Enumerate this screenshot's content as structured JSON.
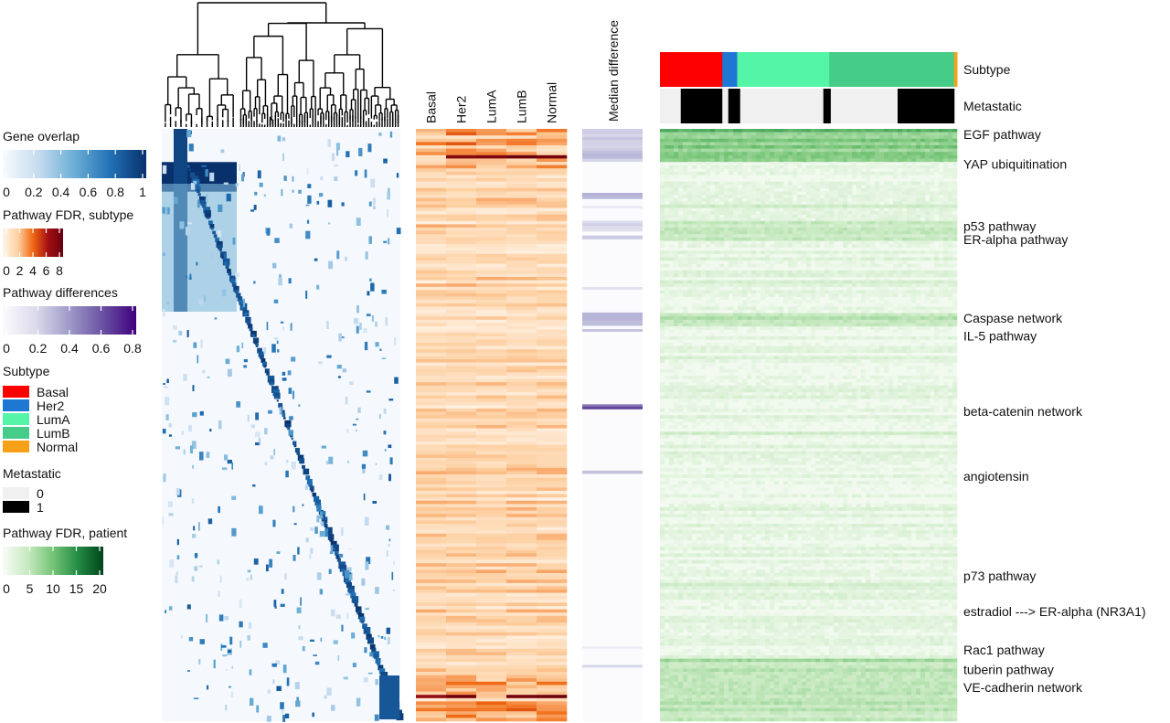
{
  "chart_data": {
    "type": "heatmap",
    "legend": {
      "gene_overlap": {
        "title": "Gene overlap",
        "ticks": [
          "0",
          "0.2",
          "0.4",
          "0.6",
          "0.8",
          "1"
        ],
        "range": [
          0,
          1
        ],
        "colors": [
          "#f7fbff",
          "#c6dbef",
          "#6baed6",
          "#2171b5",
          "#08306b"
        ]
      },
      "fdr_subtype": {
        "title": "Pathway FDR, subtype",
        "ticks": [
          "0",
          "2",
          "4",
          "6",
          "8"
        ],
        "range": [
          0,
          8
        ],
        "colors": [
          "#fff5eb",
          "#fdd0a2",
          "#f16913",
          "#a50f15",
          "#67000d"
        ]
      },
      "pathway_diff": {
        "title": "Pathway differences",
        "ticks": [
          "0",
          "0.2",
          "0.4",
          "0.6",
          "0.8"
        ],
        "range": [
          0,
          0.8
        ],
        "colors": [
          "#fcfbfd",
          "#dadaeb",
          "#9e9ac8",
          "#6a51a3",
          "#3f007d"
        ]
      },
      "subtype": {
        "title": "Subtype",
        "items": [
          {
            "label": "Basal",
            "color": "#ff0000"
          },
          {
            "label": "Her2",
            "color": "#1f77d4"
          },
          {
            "label": "LumA",
            "color": "#55f5a8"
          },
          {
            "label": "LumB",
            "color": "#44cc88"
          },
          {
            "label": "Normal",
            "color": "#f7a11a"
          }
        ]
      },
      "metastatic": {
        "title": "Metastatic",
        "items": [
          {
            "label": "0",
            "color": "#f0f0f0"
          },
          {
            "label": "1",
            "color": "#000000"
          }
        ]
      },
      "fdr_patient": {
        "title": "Pathway FDR, patient",
        "ticks": [
          "0",
          "5",
          "10",
          "15",
          "20"
        ],
        "range": [
          0,
          20
        ],
        "colors": [
          "#f7fcf5",
          "#c7e9c0",
          "#74c476",
          "#238b45",
          "#00441b"
        ]
      }
    },
    "subtype_columns": [
      "Basal",
      "Her2",
      "LumA",
      "LumB",
      "Normal"
    ],
    "median_difference_label": "Median difference",
    "annotation_rows": [
      "Subtype",
      "Metastatic"
    ],
    "patient_subtype_segments": [
      {
        "subtype": "Basal",
        "fraction": 0.21
      },
      {
        "subtype": "Her2",
        "fraction": 0.05
      },
      {
        "subtype": "LumA",
        "fraction": 0.31
      },
      {
        "subtype": "LumB",
        "fraction": 0.42
      },
      {
        "subtype": "Normal",
        "fraction": 0.01
      }
    ],
    "patient_metastatic_segments": [
      {
        "value": 0,
        "fraction": 0.07
      },
      {
        "value": 1,
        "fraction": 0.14
      },
      {
        "value": 0,
        "fraction": 0.02
      },
      {
        "value": 1,
        "fraction": 0.04
      },
      {
        "value": 0,
        "fraction": 0.28
      },
      {
        "value": 1,
        "fraction": 0.025
      },
      {
        "value": 0,
        "fraction": 0.225
      },
      {
        "value": 1,
        "fraction": 0.19
      }
    ],
    "pathway_labels": [
      {
        "label": "EGF pathway",
        "row_fraction": 0.005
      },
      {
        "label": "YAP ubiquitination",
        "row_fraction": 0.055
      },
      {
        "label": "p53 pathway",
        "row_fraction": 0.16
      },
      {
        "label": "ER-alpha pathway",
        "row_fraction": 0.182
      },
      {
        "label": "Caspase network",
        "row_fraction": 0.315
      },
      {
        "label": "IL-5 pathway",
        "row_fraction": 0.345
      },
      {
        "label": "beta-catenin network",
        "row_fraction": 0.472
      },
      {
        "label": "angiotensin",
        "row_fraction": 0.582
      },
      {
        "label": "p73 pathway",
        "row_fraction": 0.75
      },
      {
        "label": "estradiol ---> ER-alpha (NR3A1)",
        "row_fraction": 0.81
      },
      {
        "label": "Rac1 pathway",
        "row_fraction": 0.875
      },
      {
        "label": "tuberin pathway",
        "row_fraction": 0.908
      },
      {
        "label": "VE-cadherin network",
        "row_fraction": 0.938
      }
    ],
    "median_difference_highlights": [
      {
        "row_fraction": 0.0,
        "span": 0.055,
        "value": 0.4
      },
      {
        "row_fraction": 0.108,
        "span": 0.01,
        "value": 0.45
      },
      {
        "row_fraction": 0.13,
        "span": 0.004,
        "value": 0.2
      },
      {
        "row_fraction": 0.155,
        "span": 0.018,
        "value": 0.3
      },
      {
        "row_fraction": 0.18,
        "span": 0.006,
        "value": 0.35
      },
      {
        "row_fraction": 0.267,
        "span": 0.004,
        "value": 0.25
      },
      {
        "row_fraction": 0.31,
        "span": 0.022,
        "value": 0.5
      },
      {
        "row_fraction": 0.338,
        "span": 0.004,
        "value": 0.35
      },
      {
        "row_fraction": 0.465,
        "span": 0.008,
        "value": 0.8
      },
      {
        "row_fraction": 0.577,
        "span": 0.005,
        "value": 0.55
      },
      {
        "row_fraction": 0.874,
        "span": 0.003,
        "value": 0.15
      },
      {
        "row_fraction": 0.905,
        "span": 0.004,
        "value": 0.4
      }
    ],
    "gene_overlap_block": {
      "row_fraction": 0.056,
      "span": 0.05,
      "value": 1.0
    }
  }
}
